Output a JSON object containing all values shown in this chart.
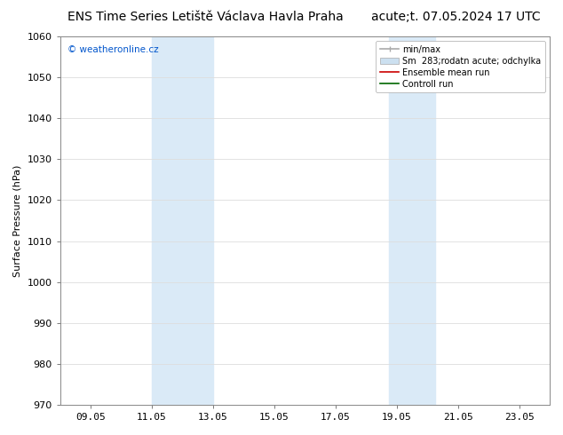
{
  "title_left": "ENS Time Series Letiště Václava Havla Praha",
  "title_right": "acute;t. 07.05.2024 17 UTC",
  "ylabel": "Surface Pressure (hPa)",
  "watermark": "© weatheronline.cz",
  "ylim": [
    970,
    1060
  ],
  "yticks": [
    970,
    980,
    990,
    1000,
    1010,
    1020,
    1030,
    1040,
    1050,
    1060
  ],
  "xlim": [
    8.0,
    24.0
  ],
  "xtick_labels": [
    "09.05",
    "11.05",
    "13.05",
    "15.05",
    "17.05",
    "19.05",
    "21.05",
    "23.05"
  ],
  "xtick_positions": [
    9,
    11,
    13,
    15,
    17,
    19,
    21,
    23
  ],
  "shaded_regions": [
    {
      "x_start": 11.0,
      "x_end": 13.0,
      "color": "#daeaf7"
    },
    {
      "x_start": 18.75,
      "x_end": 20.25,
      "color": "#daeaf7"
    }
  ],
  "legend_entries": [
    {
      "label": "min/max",
      "color": "#aaaaaa",
      "type": "minmax"
    },
    {
      "label": "Sm  283;rodatn acute; odchylka",
      "color": "#cce0f0",
      "type": "rect"
    },
    {
      "label": "Ensemble mean run",
      "color": "#cc0000",
      "type": "line"
    },
    {
      "label": "Controll run",
      "color": "#006600",
      "type": "line"
    }
  ],
  "background_color": "#ffffff",
  "plot_bg_color": "#ffffff",
  "grid_color": "#dddddd",
  "title_fontsize": 10,
  "axis_fontsize": 8,
  "tick_fontsize": 8,
  "legend_fontsize": 7,
  "watermark_color": "#0055cc"
}
